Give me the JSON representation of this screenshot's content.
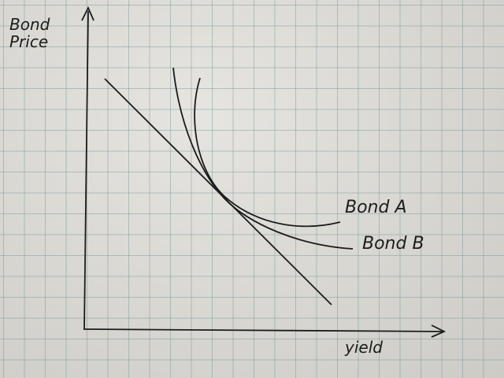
{
  "labels": {
    "y_axis_line1": "Bond",
    "y_axis_line2": "Price",
    "x_axis": "yield",
    "bond_a": "Bond A",
    "bond_b": "Bond B"
  },
  "colors": {
    "ink": "#1c1c1c",
    "paper": "#dedcd6",
    "grid": "#6e9696"
  }
}
